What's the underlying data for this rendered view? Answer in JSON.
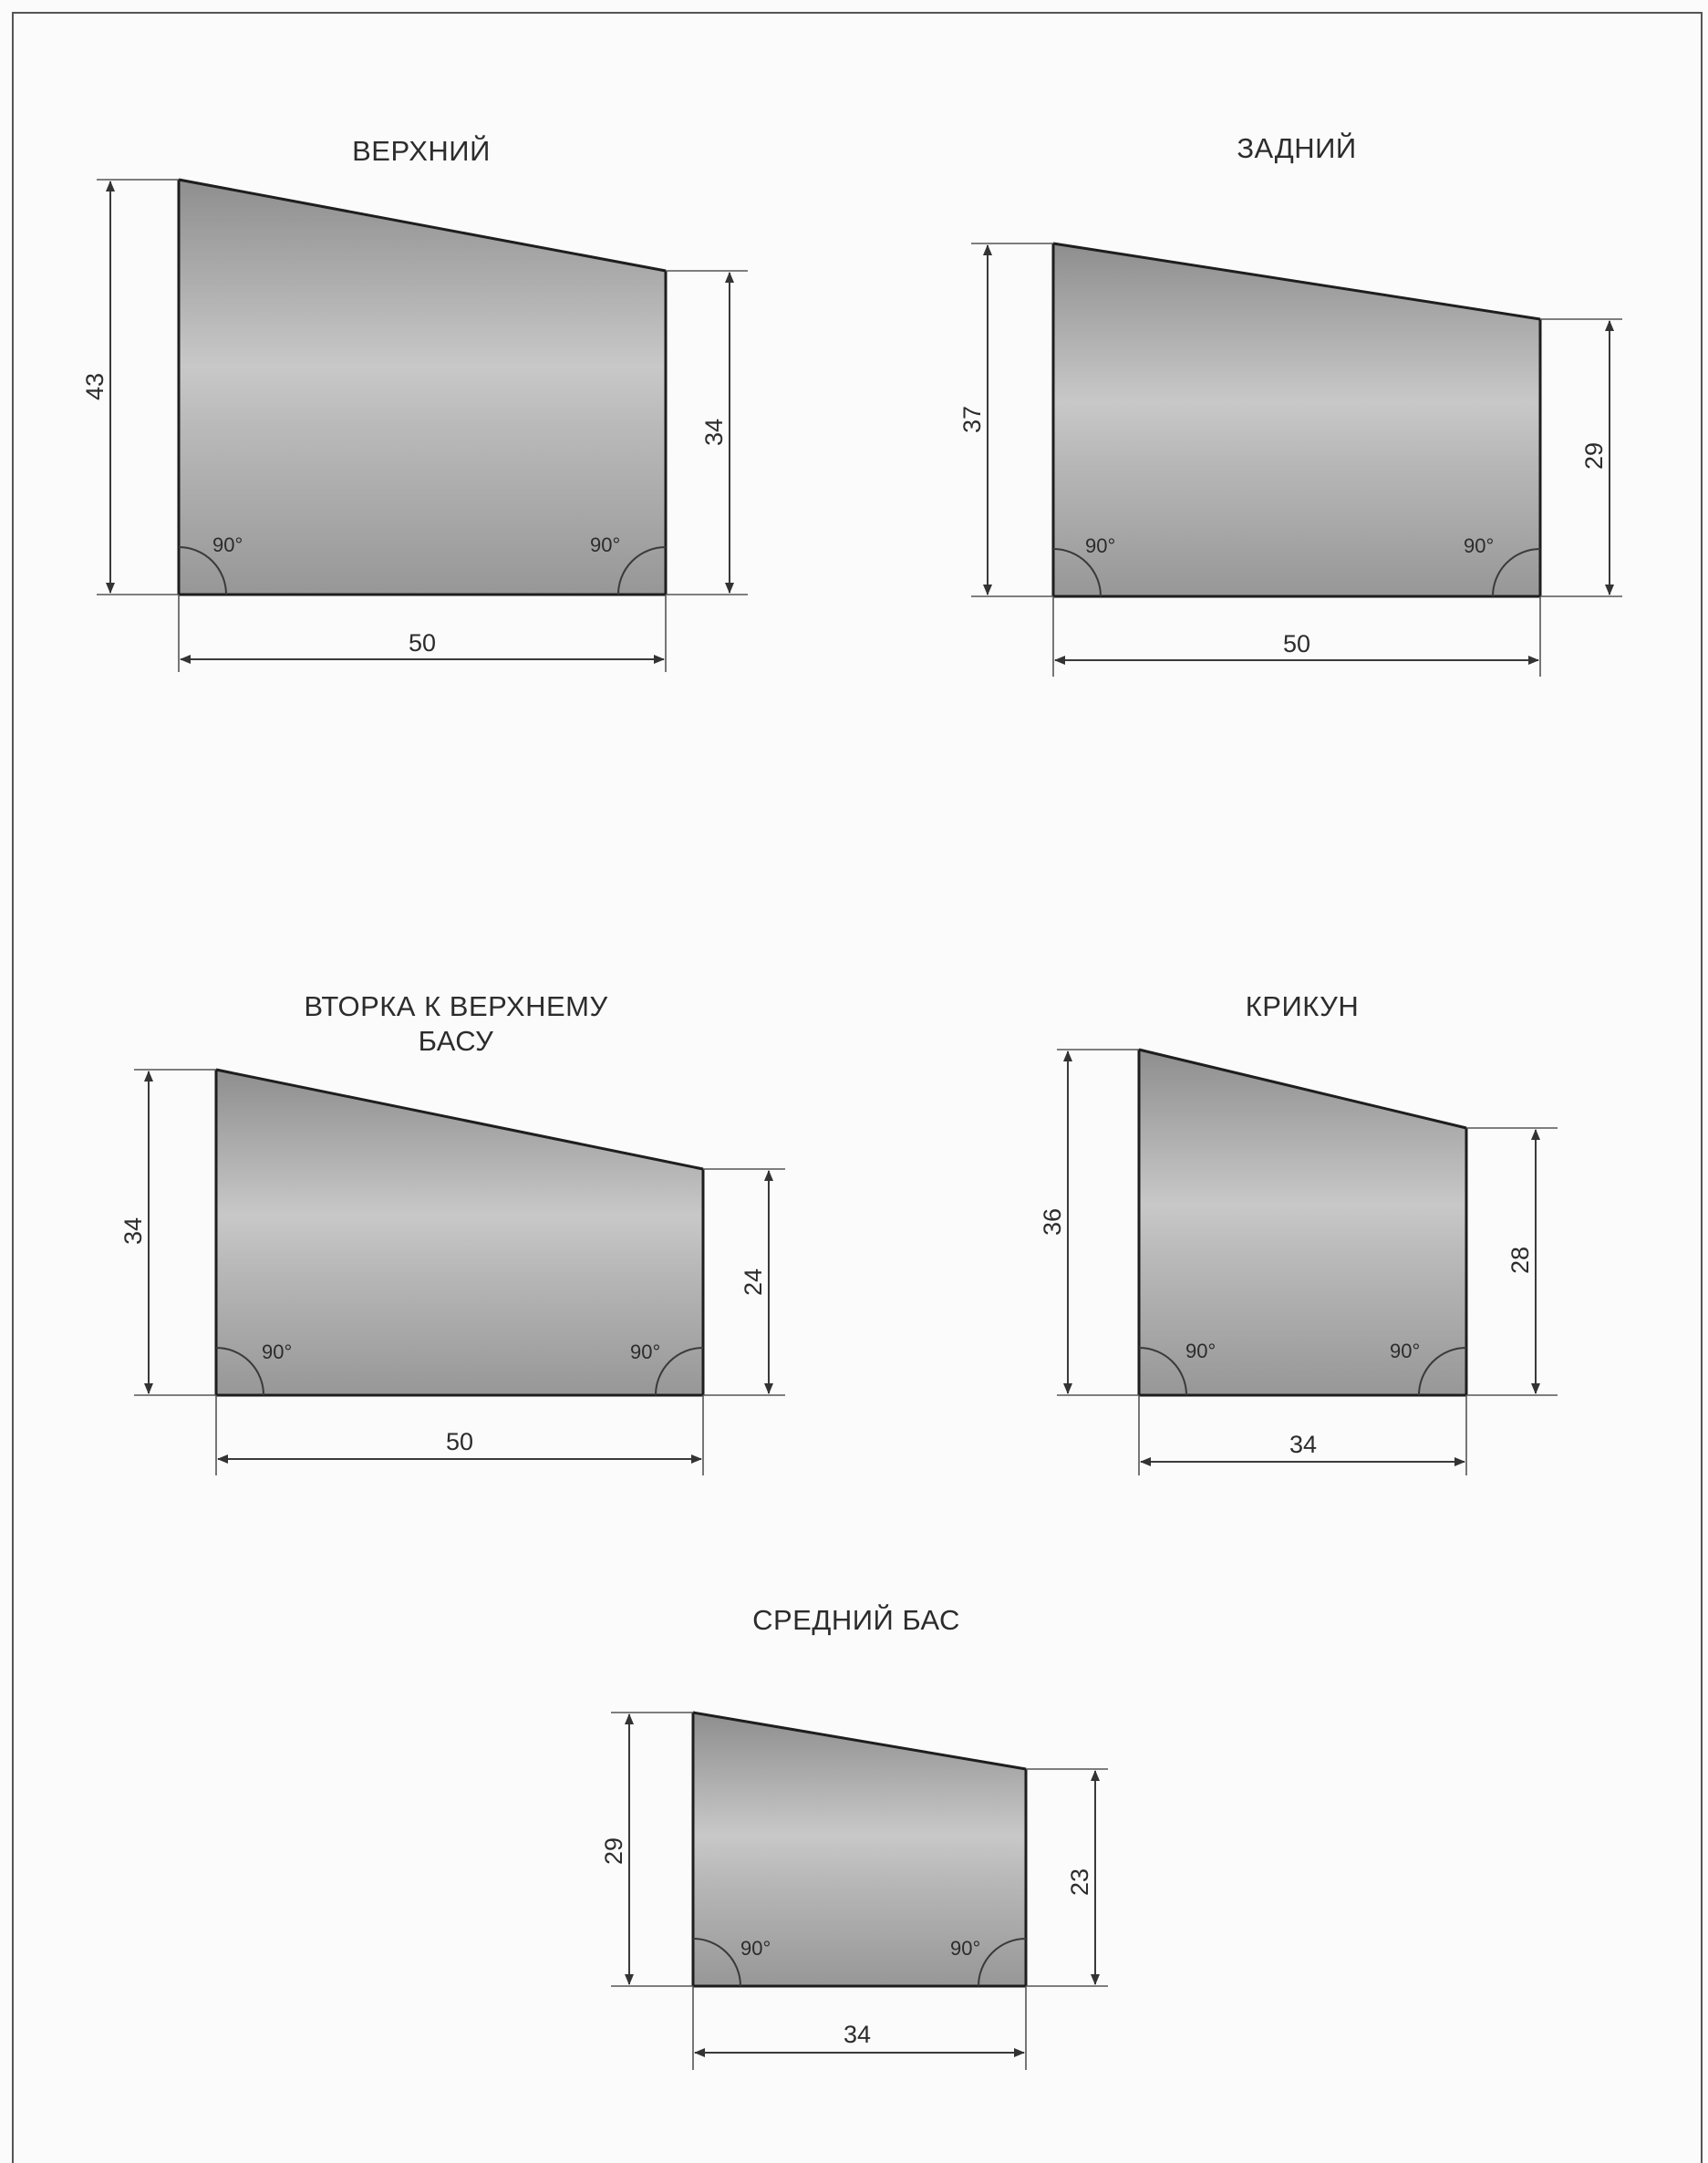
{
  "page": {
    "border_color": "#555555",
    "background": "#fbfbfb",
    "panel_gradient": [
      "#8c8c8c",
      "#c9c9c9",
      "#9a9a9a"
    ]
  },
  "panels": [
    {
      "id": "verkhniy",
      "title_lines": [
        "ВЕРХНИЙ"
      ],
      "left_height": "43",
      "right_height": "34",
      "width": "50",
      "left_angle": "90°",
      "right_angle": "90°"
    },
    {
      "id": "zadniy",
      "title_lines": [
        "ЗАДНИЙ"
      ],
      "left_height": "37",
      "right_height": "29",
      "width": "50",
      "left_angle": "90°",
      "right_angle": "90°"
    },
    {
      "id": "vtorka",
      "title_lines": [
        "ВТОРКА К ВЕРХНЕМУ",
        "БАСУ"
      ],
      "left_height": "34",
      "right_height": "24",
      "width": "50",
      "left_angle": "90°",
      "right_angle": "90°"
    },
    {
      "id": "krikun",
      "title_lines": [
        "КРИКУН"
      ],
      "left_height": "36",
      "right_height": "28",
      "width": "34",
      "left_angle": "90°",
      "right_angle": "90°"
    },
    {
      "id": "sredniy-bas",
      "title_lines": [
        "СРЕДНИЙ БАС"
      ],
      "left_height": "29",
      "right_height": "23",
      "width": "34",
      "left_angle": "90°",
      "right_angle": "90°"
    }
  ]
}
